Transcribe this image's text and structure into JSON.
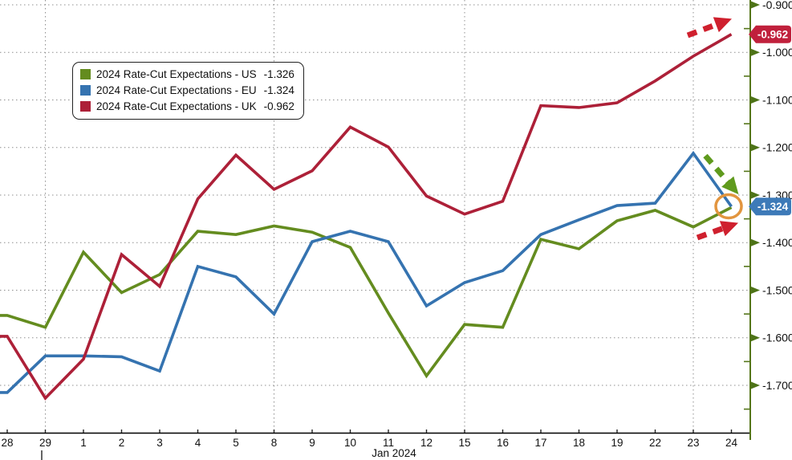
{
  "chart_data": {
    "type": "line",
    "xlabel": "Jan 2024",
    "grid": true,
    "legend_position": "top-left",
    "categories": [
      "28",
      "29",
      "1",
      "2",
      "3",
      "4",
      "5",
      "8",
      "9",
      "10",
      "11",
      "12",
      "15",
      "16",
      "17",
      "18",
      "19",
      "22",
      "23",
      "24"
    ],
    "series": [
      {
        "id": "us",
        "name": "2024 Rate-Cut Expectations - US",
        "last_value": "-1.326",
        "color": "#648c1f",
        "values": [
          -1.553,
          -1.578,
          -1.42,
          -1.505,
          -1.467,
          -1.376,
          -1.383,
          -1.365,
          -1.378,
          -1.41,
          -1.548,
          -1.68,
          -1.572,
          -1.578,
          -1.393,
          -1.413,
          -1.354,
          -1.332,
          -1.367,
          -1.326
        ]
      },
      {
        "id": "eu",
        "name": "2024 Rate-Cut Expectations - EU",
        "last_value": "-1.324",
        "color": "#3573b0",
        "values": [
          -1.715,
          -1.638,
          -1.638,
          -1.64,
          -1.67,
          -1.45,
          -1.472,
          -1.55,
          -1.398,
          -1.376,
          -1.398,
          -1.533,
          -1.484,
          -1.459,
          -1.383,
          -1.352,
          -1.322,
          -1.317,
          -1.212,
          -1.324
        ]
      },
      {
        "id": "uk",
        "name": "2024 Rate-Cut Expectations - UK",
        "last_value": "-0.962",
        "color": "#ad2038",
        "values": [
          -1.597,
          -1.727,
          -1.645,
          -1.425,
          -1.492,
          -1.308,
          -1.216,
          -1.288,
          -1.249,
          -1.157,
          -1.199,
          -1.302,
          -1.34,
          -1.313,
          -1.112,
          -1.116,
          -1.106,
          -1.06,
          -1.008,
          -0.962
        ]
      }
    ],
    "y_axis": {
      "ticks": [
        "-0.900",
        "-1.000",
        "-1.100",
        "-1.200",
        "-1.300",
        "-1.400",
        "-1.500",
        "-1.600",
        "-1.700"
      ],
      "tick_values": [
        -0.9,
        -1.0,
        -1.1,
        -1.2,
        -1.3,
        -1.4,
        -1.5,
        -1.6,
        -1.7
      ],
      "minor_step": 0.05
    },
    "x_gridline_indices": [
      1,
      7,
      12,
      18
    ],
    "price_badges": [
      {
        "id": "uk",
        "text": "-0.962",
        "value": -0.962,
        "color": "#c0203c"
      },
      {
        "id": "eu",
        "text": "-1.324",
        "value": -1.324,
        "color": "#3d7ab8"
      }
    ],
    "annotations": {
      "arrows": [
        {
          "id": "uk-trend-up",
          "color": "#cf202e",
          "from": [
            857,
            44
          ],
          "to": [
            897,
            29
          ]
        },
        {
          "id": "eu-drop",
          "color": "#5f9a1d",
          "from": [
            879,
            194
          ],
          "to": [
            910,
            230
          ]
        },
        {
          "id": "us-trend-up",
          "color": "#cf202e",
          "from": [
            869,
            296
          ],
          "to": [
            905,
            283
          ]
        }
      ],
      "circle": {
        "id": "endpoint-highlight-circle",
        "color": "#e2953f",
        "cx": 908,
        "cy": 257,
        "rx": 16,
        "ry": 14.5
      }
    }
  }
}
